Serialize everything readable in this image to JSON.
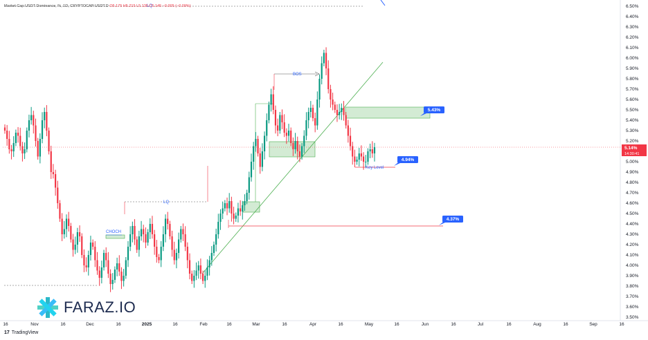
{
  "header": {
    "symbol": "Market Cap USDT Dominance, %, 1D, CRYPTOCAP:USDT.D",
    "ohlc": "O5.175 H5.215 L5.135 C5.145 −0.005 (−0.09%)"
  },
  "price_label": {
    "value": "5.14%",
    "time": "14:30:41",
    "color": "#f23645"
  },
  "branding": {
    "tradingview": "TradingView",
    "logo_glyph": "17",
    "watermark": "FARAZ.IO"
  },
  "colors": {
    "up": "#089981",
    "down": "#f23645",
    "zone_fill": "#c8e6c9",
    "zone_edge": "#4caf50",
    "accent": "#2962ff"
  },
  "chart_data": {
    "type": "candlestick",
    "title": "",
    "yaxis": {
      "ticks": [
        "3.50%",
        "3.60%",
        "3.70%",
        "3.80%",
        "3.90%",
        "4.00%",
        "4.10%",
        "4.20%",
        "4.30%",
        "4.40%",
        "4.50%",
        "4.60%",
        "4.70%",
        "4.80%",
        "4.90%",
        "5.00%",
        "5.10%",
        "5.20%",
        "5.30%",
        "5.40%",
        "5.50%",
        "5.60%",
        "5.70%",
        "5.80%",
        "5.90%",
        "6.00%",
        "6.10%",
        "6.20%",
        "6.30%",
        "6.40%",
        "6.50%"
      ],
      "range": [
        3.5,
        6.5
      ]
    },
    "xaxis": {
      "labels": [
        {
          "text": "16",
          "bold": false
        },
        {
          "text": "Nov",
          "bold": false
        },
        {
          "text": "16",
          "bold": false
        },
        {
          "text": "Dec",
          "bold": false
        },
        {
          "text": "16",
          "bold": false
        },
        {
          "text": "2025",
          "bold": true
        },
        {
          "text": "16",
          "bold": false
        },
        {
          "text": "Feb",
          "bold": false
        },
        {
          "text": "16",
          "bold": false
        },
        {
          "text": "Mar",
          "bold": false
        },
        {
          "text": "16",
          "bold": false
        },
        {
          "text": "Apr",
          "bold": false
        },
        {
          "text": "16",
          "bold": false
        },
        {
          "text": "May",
          "bold": false
        },
        {
          "text": "16",
          "bold": false
        },
        {
          "text": "Jun",
          "bold": false
        },
        {
          "text": "16",
          "bold": false
        },
        {
          "text": "Jul",
          "bold": false
        },
        {
          "text": "16",
          "bold": false
        },
        {
          "text": "Aug",
          "bold": false
        },
        {
          "text": "16",
          "bold": false
        },
        {
          "text": "Sep",
          "bold": false
        },
        {
          "text": "16",
          "bold": false
        }
      ]
    },
    "series": [
      {
        "type": "candle",
        "values": [
          5.3,
          5.22,
          5.12,
          5.1,
          5.18,
          5.28,
          5.25,
          5.15,
          5.08,
          5.12,
          5.3,
          5.4,
          5.45,
          5.35,
          5.2,
          5.05,
          5.22,
          5.4,
          5.48,
          5.3,
          5.1,
          4.9,
          4.88,
          4.75,
          4.6,
          4.45,
          4.3,
          4.35,
          4.45,
          4.38,
          4.25,
          4.15,
          4.2,
          4.32,
          4.28,
          4.1,
          4.0,
          3.98,
          4.1,
          4.22,
          4.18,
          4.05,
          3.95,
          3.88,
          3.98,
          4.12,
          4.05,
          3.92,
          3.82,
          3.86,
          3.96,
          4.02,
          3.94,
          3.85,
          3.9,
          4.05,
          4.18,
          4.3,
          4.38,
          4.25,
          4.15,
          4.28,
          4.35,
          4.3,
          4.22,
          4.32,
          4.4,
          4.3,
          4.18,
          4.08,
          4.05,
          4.18,
          4.3,
          4.45,
          4.4,
          4.28,
          4.15,
          4.05,
          4.12,
          4.25,
          4.35,
          4.3,
          4.18,
          4.05,
          3.92,
          3.85,
          3.9,
          3.95,
          4.0,
          3.92,
          3.85,
          3.9,
          3.98,
          4.05,
          4.12,
          4.2,
          4.3,
          4.42,
          4.5,
          4.55,
          4.6,
          4.55,
          4.62,
          4.5,
          4.45,
          4.48,
          4.55,
          4.52,
          4.58,
          4.62,
          4.7,
          4.85,
          5.0,
          5.15,
          5.22,
          5.08,
          4.95,
          5.1,
          5.25,
          5.4,
          5.55,
          5.65,
          5.5,
          5.35,
          5.3,
          5.45,
          5.38,
          5.28,
          5.25,
          5.3,
          5.18,
          5.12,
          5.2,
          5.1,
          5.05,
          5.15,
          5.25,
          5.4,
          5.48,
          5.52,
          5.42,
          5.35,
          5.6,
          5.8,
          5.95,
          6.05,
          5.9,
          5.7,
          5.6,
          5.55,
          5.5,
          5.45,
          5.48,
          5.52,
          5.45,
          5.35,
          5.25,
          5.15,
          5.05,
          5.0,
          5.02,
          5.08,
          5.05,
          5.0,
          5.0,
          5.1,
          5.12,
          5.08,
          5.14
        ]
      }
    ],
    "annotations": {
      "bos": "BOS",
      "lq": "LQ",
      "choch": "CHOCH",
      "key_level": "Key Level",
      "level_543": "5.43%",
      "level_494": "4.94%",
      "level_437": "4.37%",
      "lq_top": "LQ"
    }
  }
}
